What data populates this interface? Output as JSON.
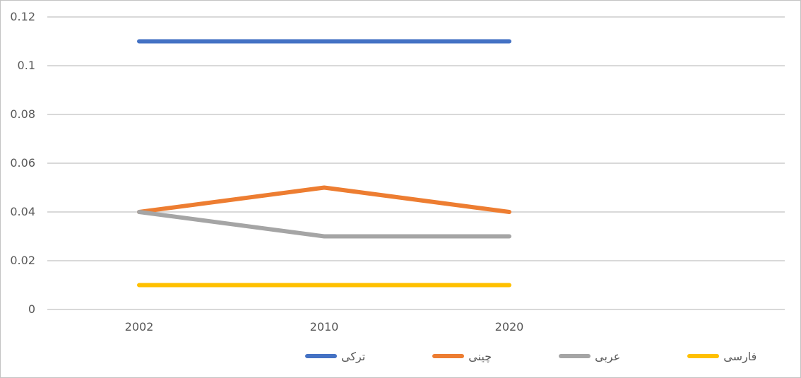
{
  "chart_data": {
    "type": "line",
    "categories": [
      "2002",
      "2010",
      "2020"
    ],
    "series": [
      {
        "key": "turkish",
        "name": "ترکی",
        "color": "#4472C4",
        "values": [
          0.11,
          0.11,
          0.11
        ]
      },
      {
        "key": "chinese",
        "name": "چینی",
        "color": "#ED7D31",
        "values": [
          0.04,
          0.05,
          0.04
        ]
      },
      {
        "key": "arabic",
        "name": "عربی",
        "color": "#A5A5A5",
        "values": [
          0.04,
          0.03,
          0.03
        ]
      },
      {
        "key": "farsi",
        "name": "فارسی",
        "color": "#FFC000",
        "values": [
          0.01,
          0.01,
          0.01
        ]
      }
    ],
    "title": "",
    "xlabel": "",
    "ylabel": "",
    "ylim": [
      0,
      0.12
    ],
    "y_ticks": [
      0,
      0.02,
      0.04,
      0.06,
      0.08,
      0.1,
      0.12
    ],
    "y_tick_labels": [
      "0",
      "0.02",
      "0.04",
      "0.06",
      "0.08",
      "0.1",
      "0.12"
    ],
    "grid": true,
    "legend_position": "bottom",
    "colors": {
      "gridline": "#D9D9D9",
      "axis_text": "#595959",
      "background": "#FFFFFF",
      "border": "#C3C3C3"
    }
  }
}
